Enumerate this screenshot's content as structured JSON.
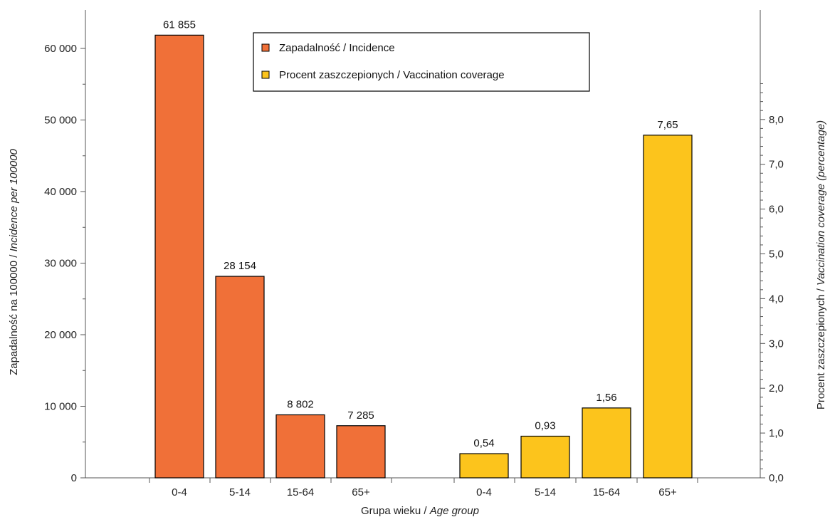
{
  "colors": {
    "incidence": "#f07038",
    "vaccination": "#fcc41c",
    "axis": "#555555",
    "bar_border": "#000000"
  },
  "chart_data": {
    "type": "bar",
    "xlabel_plain": "Grupa wieku / ",
    "xlabel_italic": "Age group",
    "ylabel_left_plain": "Zapadalność na 100000 / ",
    "ylabel_left_italic": "Incidence per 100000",
    "ylabel_right_plain": "Procent zaszczepionych / ",
    "ylabel_right_italic": "Vaccination coverage (percentage)",
    "ylim_left": [
      0,
      65000
    ],
    "ylim_right": [
      0,
      8.5
    ],
    "yticks_left": [
      0,
      10000,
      20000,
      30000,
      40000,
      50000,
      60000
    ],
    "yticks_left_labels": [
      "0",
      "10 000",
      "20 000",
      "30 000",
      "40 000",
      "50 000",
      "60 000"
    ],
    "yticks_right": [
      0,
      1,
      2,
      3,
      4,
      5,
      6,
      7,
      8
    ],
    "yticks_right_labels": [
      "0,0",
      "1,0",
      "2,0",
      "3,0",
      "4,0",
      "5,0",
      "6,0",
      "7,0",
      "8,0"
    ],
    "legend": {
      "placement": "top-center"
    },
    "series": [
      {
        "name": "Zapadalność / Incidence",
        "axis": "left",
        "categories": [
          "0-4",
          "5-14",
          "15-64",
          "65+"
        ],
        "values": [
          61855,
          28154,
          8802,
          7285
        ],
        "labels": [
          "61 855",
          "28 154",
          "8 802",
          "7 285"
        ]
      },
      {
        "name": "Procent zaszczepionych / Vaccination coverage",
        "axis": "right",
        "categories": [
          "0-4",
          "5-14",
          "15-64",
          "65+"
        ],
        "values": [
          0.54,
          0.93,
          1.56,
          7.65
        ],
        "labels": [
          "0,54",
          "0,93",
          "1,56",
          "7,65"
        ]
      }
    ]
  }
}
